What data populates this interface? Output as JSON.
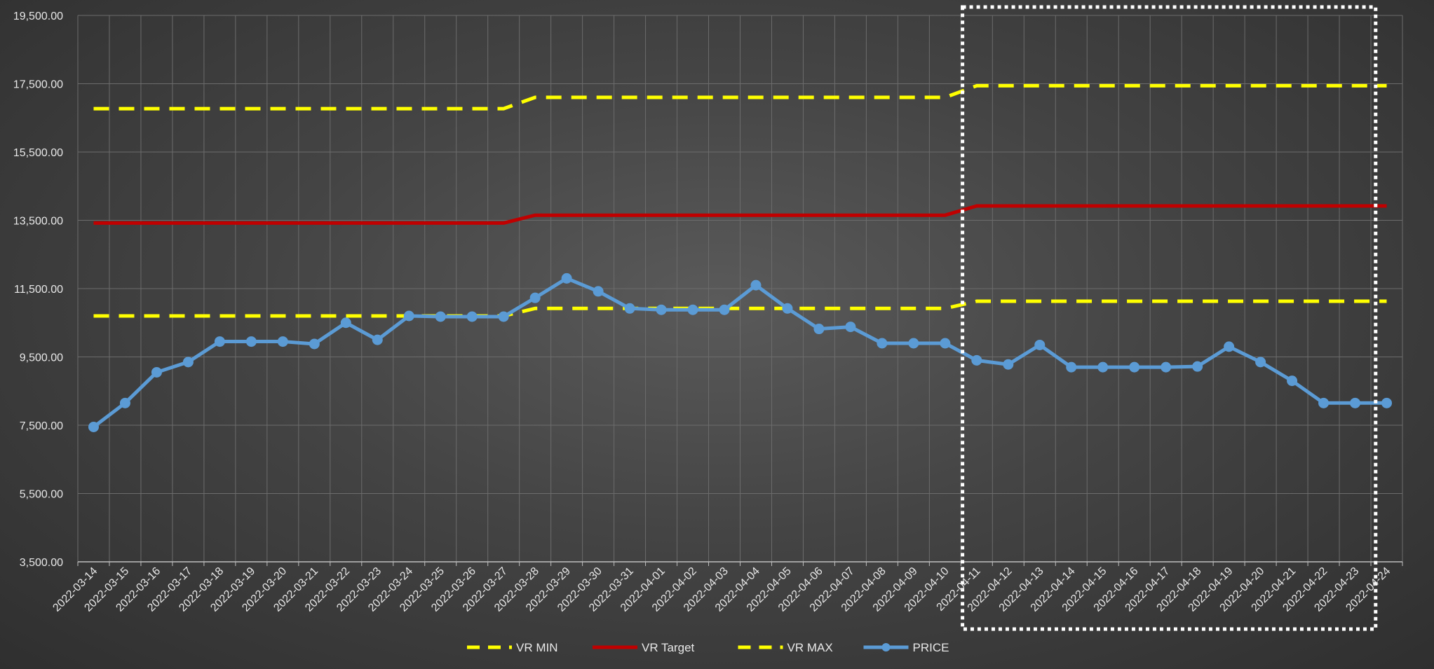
{
  "chart_data": {
    "type": "line",
    "title": "",
    "xlabel": "",
    "ylabel": "",
    "ylim": [
      3500,
      19500
    ],
    "yticks": [
      3500,
      5500,
      7500,
      9500,
      11500,
      13500,
      15500,
      17500,
      19500
    ],
    "ytick_labels": [
      "3,500.00",
      "5,500.00",
      "7,500.00",
      "9,500.00",
      "11,500.00",
      "13,500.00",
      "15,500.00",
      "17,500.00",
      "19,500.00"
    ],
    "grid": true,
    "legend": "bottom",
    "highlight_box": {
      "from": "2022-04-10",
      "to": "2022-04-24",
      "style": "white dotted rectangle"
    },
    "x": [
      "2022-03-14",
      "2022-03-15",
      "2022-03-16",
      "2022-03-17",
      "2022-03-18",
      "2022-03-19",
      "2022-03-20",
      "2022-03-21",
      "2022-03-22",
      "2022-03-23",
      "2022-03-24",
      "2022-03-25",
      "2022-03-26",
      "2022-03-27",
      "2022-03-28",
      "2022-03-29",
      "2022-03-30",
      "2022-03-31",
      "2022-04-01",
      "2022-04-02",
      "2022-04-03",
      "2022-04-04",
      "2022-04-05",
      "2022-04-06",
      "2022-04-07",
      "2022-04-08",
      "2022-04-09",
      "2022-04-10",
      "2022-04-11",
      "2022-04-12",
      "2022-04-13",
      "2022-04-14",
      "2022-04-15",
      "2022-04-16",
      "2022-04-17",
      "2022-04-18",
      "2022-04-19",
      "2022-04-20",
      "2022-04-21",
      "2022-04-22",
      "2022-04-23",
      "2022-04-24"
    ],
    "series": [
      {
        "name": "VR MIN",
        "color": "#ffff00",
        "style": "dashed",
        "values": [
          10700,
          10700,
          10700,
          10700,
          10700,
          10700,
          10700,
          10700,
          10700,
          10700,
          10700,
          10700,
          10700,
          10700,
          10920,
          10920,
          10920,
          10920,
          10920,
          10920,
          10920,
          10920,
          10920,
          10920,
          10920,
          10920,
          10920,
          10920,
          11130,
          11130,
          11130,
          11130,
          11130,
          11130,
          11130,
          11130,
          11130,
          11130,
          11130,
          11130,
          11130,
          11130
        ]
      },
      {
        "name": "VR Target",
        "color": "#c00000",
        "style": "solid",
        "values": [
          13420,
          13420,
          13420,
          13420,
          13420,
          13420,
          13420,
          13420,
          13420,
          13420,
          13420,
          13420,
          13420,
          13420,
          13650,
          13650,
          13650,
          13650,
          13650,
          13650,
          13650,
          13650,
          13650,
          13650,
          13650,
          13650,
          13650,
          13650,
          13920,
          13920,
          13920,
          13920,
          13920,
          13920,
          13920,
          13920,
          13920,
          13920,
          13920,
          13920,
          13920,
          13920
        ]
      },
      {
        "name": "VR MAX",
        "color": "#ffff00",
        "style": "dashed",
        "values": [
          16770,
          16770,
          16770,
          16770,
          16770,
          16770,
          16770,
          16770,
          16770,
          16770,
          16770,
          16770,
          16770,
          16770,
          17100,
          17100,
          17100,
          17100,
          17100,
          17100,
          17100,
          17100,
          17100,
          17100,
          17100,
          17100,
          17100,
          17100,
          17440,
          17440,
          17440,
          17440,
          17440,
          17440,
          17440,
          17440,
          17440,
          17440,
          17440,
          17440,
          17440,
          17440
        ]
      },
      {
        "name": "PRICE",
        "color": "#5b9bd5",
        "style": "solid-markers",
        "values": [
          7450,
          8150,
          9050,
          9350,
          9950,
          9950,
          9950,
          9880,
          10500,
          10000,
          10700,
          10680,
          10680,
          10680,
          11230,
          11800,
          11420,
          10920,
          10880,
          10880,
          10880,
          11600,
          10920,
          10320,
          10380,
          9900,
          9900,
          9900,
          9400,
          9280,
          9850,
          9200,
          9200,
          9200,
          9200,
          9220,
          9800,
          9350,
          8800,
          8150,
          8150,
          8150
        ]
      }
    ]
  }
}
